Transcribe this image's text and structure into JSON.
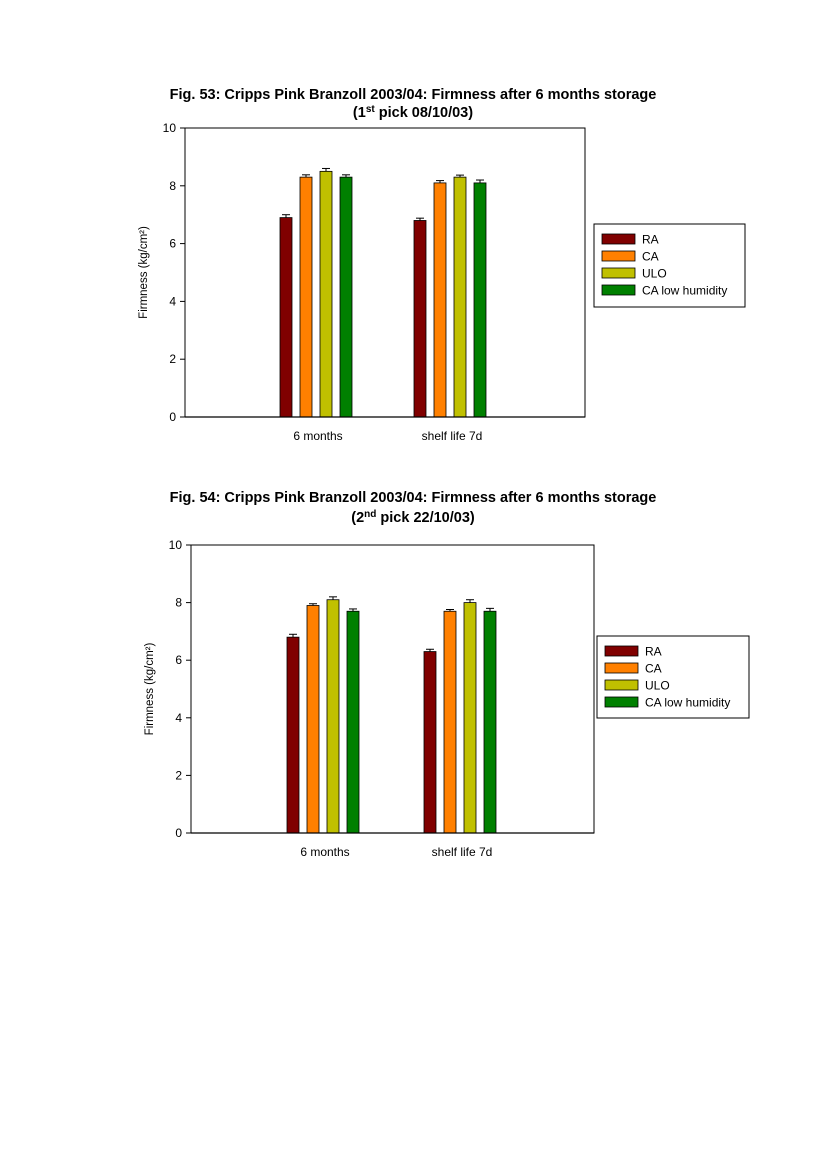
{
  "figures": [
    {
      "title_line1": "Fig. 53: Cripps Pink Branzoll 2003/04: Firmness after 6 months storage",
      "title_pre": "(1",
      "title_sup": "st",
      "title_post": " pick  08/10/03)"
    },
    {
      "title_line1": "Fig. 54: Cripps Pink Branzoll 2003/04: Firmness after 6 months storage",
      "title_pre": "(2",
      "title_sup": "nd",
      "title_post": " pick 22/10/03)"
    }
  ],
  "colors": {
    "RA": "#800000",
    "CA": "#ff8000",
    "ULO": "#c0c000",
    "CA low humidity": "#008000"
  },
  "chart_data": [
    {
      "type": "bar",
      "title": "Fig. 53: Cripps Pink Branzoll 2003/04: Firmness after 6 months storage (1st pick 08/10/03)",
      "categories": [
        "6 months",
        "shelf life 7d"
      ],
      "series": [
        {
          "name": "RA",
          "values": [
            6.9,
            6.8
          ],
          "errors": [
            0.1,
            0.08
          ]
        },
        {
          "name": "CA",
          "values": [
            8.3,
            8.1
          ],
          "errors": [
            0.08,
            0.08
          ]
        },
        {
          "name": "ULO",
          "values": [
            8.5,
            8.3
          ],
          "errors": [
            0.1,
            0.07
          ]
        },
        {
          "name": "CA low humidity",
          "values": [
            8.3,
            8.1
          ],
          "errors": [
            0.08,
            0.1
          ]
        }
      ],
      "xlabel": "",
      "ylabel": "Firmness (kg/cm²)",
      "ylim": [
        0,
        10
      ],
      "yticks": [
        0,
        2,
        4,
        6,
        8,
        10
      ],
      "grid": false,
      "legend": "right"
    },
    {
      "type": "bar",
      "title": "Fig. 54: Cripps Pink Branzoll 2003/04: Firmness after 6 months storage (2nd pick 22/10/03)",
      "categories": [
        "6 months",
        "shelf life 7d"
      ],
      "series": [
        {
          "name": "RA",
          "values": [
            6.8,
            6.3
          ],
          "errors": [
            0.1,
            0.08
          ]
        },
        {
          "name": "CA",
          "values": [
            7.9,
            7.7
          ],
          "errors": [
            0.06,
            0.06
          ]
        },
        {
          "name": "ULO",
          "values": [
            8.1,
            8.0
          ],
          "errors": [
            0.1,
            0.1
          ]
        },
        {
          "name": "CA low humidity",
          "values": [
            7.7,
            7.7
          ],
          "errors": [
            0.08,
            0.1
          ]
        }
      ],
      "xlabel": "",
      "ylabel": "Firmness (kg/cm²)",
      "ylim": [
        0,
        10
      ],
      "yticks": [
        0,
        2,
        4,
        6,
        8,
        10
      ],
      "grid": false,
      "legend": "right"
    }
  ]
}
